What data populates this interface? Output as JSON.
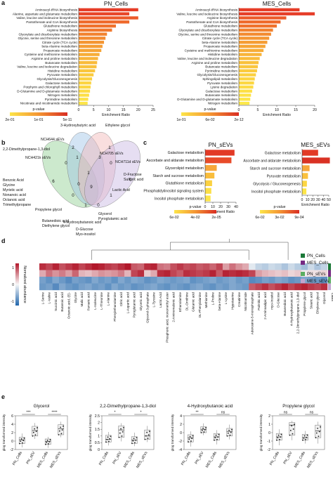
{
  "panel_letters": [
    "a",
    "b",
    "c",
    "d",
    "e"
  ],
  "colors": {
    "heat_high": "#b2182b",
    "heat_mid": "#f7f7f7",
    "heat_low": "#2166ac"
  },
  "chart_data": [
    {
      "type": "bar",
      "title": "PN_Cells",
      "orientation": "horizontal",
      "xlabel": "Enrichment Ratio",
      "xlim": [
        0,
        25
      ],
      "xticks": [
        0,
        5,
        10,
        15,
        20,
        25
      ],
      "legend": {
        "title": "p-value",
        "ticks": [
          "2e-01",
          "1e-01",
          "5e-11"
        ]
      },
      "categories": [
        "Aminoacyl-tRNA biosynthesis",
        "Alanine, aspartate and glutamate metabolism",
        "Valine, leucine and isoleucine biosynthesis",
        "Pantothenate and CoA biosynthesis",
        "Glutathione metabolism",
        "Arginine biosynthesis",
        "Glyoxylate and dicarboxylate metabolism",
        "Glycine, serine and threonine metabolism",
        "Citrate cycle (TCA cycle)",
        "beta-Alanine metabolism",
        "Propanoate metabolism",
        "Cysteine and methionine metabolism",
        "Arginine and proline metabolism",
        "Butanoate metabolism",
        "Valine, leucine and isoleucine degradation",
        "Histidine metabolism",
        "Pyruvate metabolism",
        "Glycolysis/Gluconeogenesis",
        "Galactose metabolism",
        "Porphyrin and chlorophyll metabolism",
        "D-Glutamine and D-glutamate metabolism",
        "Nitrogen metabolism",
        "Pyrimidine metabolism",
        "Nicotinate and nicotinamide metabolism"
      ],
      "values": [
        20,
        17,
        20,
        17,
        12.5,
        11.2,
        9.5,
        9,
        8.5,
        8,
        7.6,
        7,
        6.5,
        6.2,
        6,
        5.5,
        5,
        4.5,
        4.2,
        4,
        3.8,
        3.5,
        3.2,
        3
      ],
      "colors": [
        "#e63c27",
        "#e84528",
        "#ec5a2b",
        "#ef6a2c",
        "#f0722d",
        "#f1792e",
        "#f28330",
        "#f38b31",
        "#f49633",
        "#f59d35",
        "#f6a536",
        "#f7ad38",
        "#f8b43a",
        "#f9bb3b",
        "#f9c13d",
        "#fac63e",
        "#fbcb3f",
        "#fbd041",
        "#fcd442",
        "#fcd743",
        "#fddb45",
        "#fddf46",
        "#fde247",
        "#fde548"
      ]
    },
    {
      "type": "bar",
      "title": "MES_Cells",
      "orientation": "horizontal",
      "xlabel": "Enrichment Ratio",
      "xlim": [
        0,
        20
      ],
      "xticks": [
        0,
        5,
        10,
        15,
        20
      ],
      "legend": {
        "title": "p-value",
        "ticks": [
          "1e-01",
          "6e-02",
          "2e-12"
        ]
      },
      "categories": [
        "Aminoacyl-tRNA biosynthesis",
        "Valine, leucine and isoleucine biosynthesis",
        "Arginine biosynthesis",
        "Pantothenate and CoA biosynthesis",
        "Glutathione metabolism",
        "Glyoxylate and dicarboxylate metabolism",
        "Glycine, serine and threonine metabolism",
        "Citrate cycle (TCA cycle)",
        "beta-Alanine metabolism",
        "Propanoate metabolism",
        "Cysteine and methionine metabolism",
        "Histidine metabolism",
        "Valine, leucine and isoleucine degradation",
        "Arginine and proline metabolism",
        "Butanoate metabolism",
        "Pyrimidine metabolism",
        "Glycolysis/Gluconeogenesis",
        "Sphingolipid metabolism",
        "Pyruvate metabolism",
        "Lysine degradation",
        "Galactose metabolism",
        "Butanoate metabolism",
        "D-Glutamine and D-glutamate metabolism",
        "Nitrogen metabolism"
      ],
      "values": [
        16,
        20,
        12.5,
        11,
        10,
        9,
        8.5,
        8,
        7.5,
        7,
        6.5,
        6,
        5.5,
        5.2,
        5,
        4.8,
        4.5,
        4.2,
        4,
        3.8,
        3.5,
        3.2,
        3,
        2.8
      ],
      "colors": [
        "#e63c27",
        "#e63c27",
        "#ec5a2b",
        "#ef6a2c",
        "#f0722d",
        "#f28330",
        "#f38b31",
        "#f49633",
        "#f59d35",
        "#f6a536",
        "#f7ad38",
        "#f8b43a",
        "#f9bb3b",
        "#f9c13d",
        "#fac63e",
        "#fbcb3f",
        "#fbd041",
        "#fcd442",
        "#fcd743",
        "#fddb45",
        "#fddf46",
        "#fde247",
        "#fde548",
        "#fde849"
      ]
    },
    {
      "type": "venn",
      "sets": [
        "NCH644 sEVs",
        "NCH705 sEVs",
        "NCH421k sEVs",
        "NCH711d sEVs"
      ],
      "counts": [
        {
          "region": "NCH421k only",
          "value": 6
        },
        {
          "region": "NCH644 only",
          "value": 2
        },
        {
          "region": "NCH705 only",
          "value": 1
        },
        {
          "region": "NCH711d only",
          "value": 0
        },
        {
          "region": "a",
          "value": 0
        },
        {
          "region": "b",
          "value": 1
        },
        {
          "region": "c",
          "value": 1
        },
        {
          "region": "d",
          "value": 3
        },
        {
          "region": "e",
          "value": 0
        },
        {
          "region": "f",
          "value": 0
        },
        {
          "region": "g",
          "value": 1
        },
        {
          "region": "h",
          "value": 0
        },
        {
          "region": "i",
          "value": 1
        },
        {
          "region": "j",
          "value": 0
        },
        {
          "region": "all",
          "value": 9
        }
      ],
      "labels": [
        "3-Hydroxybutyric acid",
        "Ethylene glycol",
        "2,2-Dimethylpropane-1,3-diol",
        "Benzoic Acid",
        "Glycine",
        "Myristic acid",
        "Nonanoic acid",
        "Octanoic acid",
        "Trimethylpropane",
        "D-Fructose",
        "Sulfuric acid",
        "Lactic Acid",
        "Propylene glycol",
        "Glycerol",
        "Pyroglutamic acid",
        "Butanedioic acid",
        "Diethylene glycol",
        "4-Hydroxybutanoic acid",
        "D-Glucose",
        "Myo-inositol"
      ]
    },
    {
      "type": "bar",
      "title": "PN_sEVs",
      "orientation": "horizontal",
      "xlabel": "Enrichment Ratio",
      "xlim": [
        0,
        40
      ],
      "xticks": [
        0,
        10,
        20,
        30,
        40
      ],
      "legend": {
        "title": "p-value",
        "ticks": [
          "6e-02",
          "4e-02",
          "2e-05"
        ]
      },
      "categories": [
        "Galactose metabolism",
        "Ascorbate and aldarate metabolism",
        "Glycerolipid metabolism",
        "Starch and sucrose metabolism",
        "Glutathione metabolism",
        "Phosphatidylinositol signaling system",
        "Inositol phosphate metabolism"
      ],
      "values": [
        38,
        34,
        15,
        12,
        9,
        8,
        7
      ],
      "colors": [
        "#e23a26",
        "#e84b29",
        "#f7a739",
        "#f9bd3c",
        "#fbd142",
        "#fcdf46",
        "#fde548"
      ]
    },
    {
      "type": "bar",
      "title": "MES_sEVs",
      "orientation": "horizontal",
      "xlabel": "Enrichment Ratio",
      "xlim": [
        0,
        50
      ],
      "xticks": [
        0,
        10,
        20,
        30,
        40,
        50
      ],
      "legend": {
        "title": "p-value",
        "ticks": [
          "6e-02",
          "3e-02",
          "9e-04"
        ]
      },
      "categories": [
        "Galactose metabolism",
        "Ascorbate and aldarate metabolism",
        "Starch and sucrose metabolism",
        "Pyruvate metabolism",
        "Glycolysis / Gluconeogenesis",
        "Inositol phosphate metabolism"
      ],
      "values": [
        30,
        52,
        14,
        11,
        9,
        8
      ],
      "colors": [
        "#e23a26",
        "#d93224",
        "#f7a739",
        "#fbc13d",
        "#fcd643",
        "#fde548"
      ]
    },
    {
      "type": "heatmap",
      "colorbar": {
        "label": "Normalized abundance",
        "ticks": [
          "1",
          "0",
          "-1"
        ]
      },
      "side_label": "class",
      "legend": [
        "PN_Cells",
        "MES_Cells",
        "PN_sEVs",
        "MES_sEVs"
      ],
      "legend_colors": [
        "#1b7837",
        "#762a83",
        "#5aae61",
        "#c2a5cf"
      ],
      "rows": [
        "PN_Cells",
        "MES_Cells",
        "PN_sEVs",
        "MES_sEVs"
      ],
      "columns": [
        "L-Serine",
        "L-Valine",
        "Succinic acid",
        "Butanoic acid",
        "Octanoic acid, (E)-",
        "Glycine",
        "Malic acid",
        "Fumaric acid",
        "L-Isoleucine",
        "L-Threonine",
        "L-Alanine",
        "Phenylethanolamine",
        "Citric acid",
        "L-Aspartic acid",
        "Pyroglutamic acid",
        "Glyceric acid",
        "Glycerol-3-phosphate",
        "L-Tyrosine",
        "Lactic Acid",
        "Phosphoric acid, monomethyl ester",
        "2-Aminomalonic acid",
        "Ethanolamine",
        "DL-Ornithine",
        "Glutamic acid",
        "DL-Phenylalanine",
        "Methionine",
        "L-Proline",
        "beta-Alanine",
        "L-Lysine",
        "Hypotaurine",
        "Creatinine",
        "Nicotinamide",
        "Adenosine-5-monophosphate",
        "Palmitic acid",
        "2-Aminoadipic acid",
        "myo-Inositol",
        "D-Glucose",
        "Butanedioic acid",
        "4-Hydroxybutanoic acid",
        "2,2-Dimethylpropane-1,3-diol",
        "Propylene glycol",
        "Stearic acid",
        "Ethylene glycol",
        "Glycerol"
      ],
      "values": [
        [
          1.8,
          1.6,
          1.9,
          1.5,
          1.7,
          1.9,
          1.6,
          1.8,
          2,
          1.9,
          1.7,
          1.6,
          1.8,
          2,
          1.4,
          1.3,
          1.8,
          1.9,
          1.2,
          1.1,
          1.5,
          1.7,
          1.5,
          1.6,
          1.4,
          1.5,
          1.3,
          1.6,
          0.8,
          1.2,
          0.9,
          0.7,
          -0.2,
          -0.5,
          -0.6,
          -0.4,
          -0.5,
          -0.7,
          -0.4,
          -0.6,
          -0.8,
          -0.4,
          -0.7,
          -0.5
        ],
        [
          0.7,
          1.2,
          0.9,
          1.1,
          0.8,
          1.3,
          0.6,
          0.5,
          0.7,
          0.9,
          0.8,
          0.9,
          1.1,
          0.6,
          1.6,
          1.8,
          0.4,
          0.7,
          1.8,
          1.9,
          1.6,
          1.4,
          1.8,
          1.7,
          1.6,
          1.7,
          1.9,
          1.4,
          1.9,
          1.8,
          1.9,
          1.8,
          1.6,
          0.8,
          0.6,
          0.5,
          0.4,
          0.5,
          0.3,
          0.4,
          0.1,
          0.2,
          0.2,
          0.3
        ],
        [
          -1.2,
          -1.4,
          -1.1,
          -1.3,
          -1.5,
          -1.2,
          -1.3,
          -1.4,
          -1.1,
          -1.3,
          -1.2,
          -1.4,
          -1.1,
          -1.3,
          -1.1,
          -1.2,
          -1.4,
          -1.3,
          -1.1,
          -1.2,
          -1.3,
          -1.2,
          -1.1,
          -1.4,
          -1.3,
          -1.2,
          -1.1,
          -1.3,
          -1.2,
          -1.1,
          -1.3,
          -1.2,
          -1.5,
          -1.4,
          -1.2,
          -1.3,
          -1.1,
          -1.2,
          -1.4,
          -1.3,
          -1.1,
          -1.2,
          -1.3,
          -1.4
        ],
        [
          -1.3,
          -1.2,
          -1.5,
          -1.1,
          -1.3,
          -1.4,
          -1.2,
          -1.1,
          -1.3,
          -1.2,
          -1.4,
          -1.1,
          -1.3,
          -1.2,
          -1.4,
          -1.3,
          -1.2,
          -1.1,
          -1.3,
          -1.4,
          -1.2,
          -1.3,
          -1.4,
          -1.2,
          -1.1,
          -1.3,
          -1.4,
          -1.2,
          -1.3,
          -1.1,
          -1.2,
          -1.3,
          1.4,
          1.6,
          1.8,
          1.5,
          1.7,
          1.9,
          1.6,
          1.8,
          1.9,
          1.7,
          1.6,
          1.8
        ]
      ]
    },
    {
      "type": "box",
      "title": "Glycerol",
      "ylabel": "glog transformed intensity",
      "ylim": [
        -2,
        6
      ],
      "yticks": [
        -2,
        0,
        2,
        4,
        6
      ],
      "categories": [
        "PN_Cells",
        "PN_sEV",
        "MES_Cells",
        "MES_sEVs"
      ],
      "boxes": [
        {
          "q1": -0.6,
          "median": 0.3,
          "q3": 0.9,
          "min": -1.5,
          "max": 1.8
        },
        {
          "q1": 1.2,
          "median": 2.5,
          "q3": 3.5,
          "min": 0.5,
          "max": 4.3
        },
        {
          "q1": -0.8,
          "median": -0.1,
          "q3": 0.5,
          "min": -1.6,
          "max": 1.0
        },
        {
          "q1": 1.5,
          "median": 2.9,
          "q3": 3.9,
          "min": 0.9,
          "max": 4.6
        }
      ],
      "significance": [
        {
          "label": "***",
          "from": 0,
          "to": 1
        },
        {
          "label": "****",
          "from": 2,
          "to": 3
        }
      ]
    },
    {
      "type": "box",
      "title": "2,2-Dimethylpropane-1,3-diol",
      "ylabel": "glog transformed intensity",
      "ylim": [
        0,
        2.5
      ],
      "yticks": [
        0,
        0.5,
        1,
        1.5,
        2,
        2.5
      ],
      "categories": [
        "PN_Cells",
        "PN_sEV",
        "MES_Cells",
        "MES_sEVs"
      ],
      "boxes": [
        {
          "q1": 0.55,
          "median": 0.75,
          "q3": 1.05,
          "min": 0.3,
          "max": 1.3
        },
        {
          "q1": 0.9,
          "median": 1.45,
          "q3": 1.75,
          "min": 0.6,
          "max": 1.95
        },
        {
          "q1": 0.45,
          "median": 0.7,
          "q3": 0.95,
          "min": 0.25,
          "max": 1.25
        },
        {
          "q1": 0.75,
          "median": 1.0,
          "q3": 1.45,
          "min": 0.55,
          "max": 1.75
        }
      ],
      "significance": [
        {
          "label": "*",
          "from": 0,
          "to": 1
        },
        {
          "label": "*",
          "from": 2,
          "to": 3
        }
      ]
    },
    {
      "type": "box",
      "title": "4-Hydroxybutanoic acid",
      "ylabel": "glog transformed intensity",
      "ylim": [
        -4,
        4
      ],
      "yticks": [
        -4,
        -2,
        0,
        2,
        4
      ],
      "categories": [
        "PN_Cells",
        "PN_sEV",
        "MES_Cells",
        "MES_sEVs"
      ],
      "boxes": [
        {
          "q1": -2.2,
          "median": -1.2,
          "q3": -0.5,
          "min": -3.3,
          "max": 0.3
        },
        {
          "q1": 0.0,
          "median": 0.8,
          "q3": 1.4,
          "min": -0.6,
          "max": 2.2
        },
        {
          "q1": -1.8,
          "median": -1.0,
          "q3": -0.2,
          "min": -2.8,
          "max": 0.6
        },
        {
          "q1": -0.8,
          "median": 0.3,
          "q3": 1.0,
          "min": -1.6,
          "max": 1.9
        }
      ],
      "significance": [
        {
          "label": "**",
          "from": 0,
          "to": 1
        },
        {
          "label": "ns",
          "from": 2,
          "to": 3
        }
      ]
    },
    {
      "type": "box",
      "title": "Propylene glycol",
      "ylabel": "glog transformed intensity",
      "ylim": [
        -2,
        2
      ],
      "yticks": [
        -2,
        -1,
        0,
        1,
        2
      ],
      "categories": [
        "PN_Cells",
        "PN_sEV",
        "MES_Cells",
        "MES_sEVs"
      ],
      "boxes": [
        {
          "q1": -0.9,
          "median": -0.5,
          "q3": -0.1,
          "min": -1.5,
          "max": 0.4
        },
        {
          "q1": -0.3,
          "median": 0.9,
          "q3": 1.2,
          "min": -0.9,
          "max": 1.4
        },
        {
          "q1": -0.9,
          "median": -0.6,
          "q3": -0.2,
          "min": -1.3,
          "max": 0.2
        },
        {
          "q1": -0.6,
          "median": 0.2,
          "q3": 0.9,
          "min": -1.3,
          "max": 1.3
        }
      ],
      "significance": [
        {
          "label": "ns",
          "from": 0,
          "to": 1
        },
        {
          "label": "ns",
          "from": 2,
          "to": 3
        }
      ]
    }
  ]
}
